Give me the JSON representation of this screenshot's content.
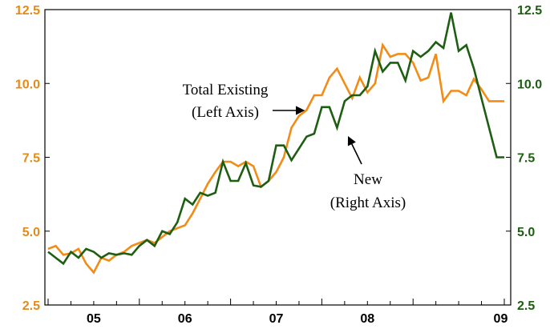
{
  "chart_data": {
    "type": "line",
    "title": "",
    "xlabel": "",
    "ylabel_left": "",
    "ylabel_right": "",
    "x_tick_labels": [
      "05",
      "06",
      "07",
      "08",
      "09"
    ],
    "left_axis": {
      "ylim": [
        2.5,
        12.5
      ],
      "ticks": [
        "2.5",
        "5.0",
        "7.5",
        "10.0",
        "12.5"
      ],
      "color": "#e68a17"
    },
    "right_axis": {
      "ylim": [
        2.5,
        12.5
      ],
      "ticks": [
        "2.5",
        "5.0",
        "7.5",
        "10.0",
        "12.5"
      ],
      "color": "#1e5e12"
    },
    "series": [
      {
        "name": "Total Existing",
        "axis": "left",
        "color": "#f28c16",
        "x": [
          2004.0,
          2004.0833,
          2004.1667,
          2004.25,
          2004.3333,
          2004.4167,
          2004.5,
          2004.5833,
          2004.6667,
          2004.75,
          2004.8333,
          2004.9167,
          2005.0,
          2005.0833,
          2005.1667,
          2005.25,
          2005.3333,
          2005.4167,
          2005.5,
          2005.5833,
          2005.6667,
          2005.75,
          2005.8333,
          2005.9167,
          2006.0,
          2006.0833,
          2006.1667,
          2006.25,
          2006.3333,
          2006.4167,
          2006.5,
          2006.5833,
          2006.6667,
          2006.75,
          2006.8333,
          2006.9167,
          2007.0,
          2007.0833,
          2007.1667,
          2007.25,
          2007.3333,
          2007.4167,
          2007.5,
          2007.5833,
          2007.6667,
          2007.75,
          2007.8333,
          2007.9167,
          2008.0,
          2008.0833,
          2008.1667,
          2008.25,
          2008.3333,
          2008.4167,
          2008.5,
          2008.5833,
          2008.6667,
          2008.75,
          2008.8333,
          2008.9167,
          2009.0
        ],
        "values": [
          4.4,
          4.5,
          4.2,
          4.25,
          4.4,
          3.9,
          3.6,
          4.1,
          4.0,
          4.2,
          4.3,
          4.5,
          4.6,
          4.7,
          4.6,
          4.8,
          5.0,
          5.1,
          5.2,
          5.6,
          6.1,
          6.6,
          7.0,
          7.35,
          7.35,
          7.2,
          7.35,
          7.2,
          6.5,
          6.7,
          7.0,
          7.5,
          8.5,
          8.9,
          9.1,
          9.6,
          9.6,
          10.2,
          10.5,
          10.0,
          9.5,
          10.2,
          9.7,
          10.0,
          11.3,
          10.9,
          11.0,
          11.0,
          10.7,
          10.1,
          10.2,
          11.0,
          9.4,
          9.75,
          9.75,
          9.6,
          10.15,
          9.8,
          9.4,
          9.4,
          9.4
        ]
      },
      {
        "name": "New",
        "axis": "right",
        "color": "#1e5e12",
        "x": [
          2004.0,
          2004.0833,
          2004.1667,
          2004.25,
          2004.3333,
          2004.4167,
          2004.5,
          2004.5833,
          2004.6667,
          2004.75,
          2004.8333,
          2004.9167,
          2005.0,
          2005.0833,
          2005.1667,
          2005.25,
          2005.3333,
          2005.4167,
          2005.5,
          2005.5833,
          2005.6667,
          2005.75,
          2005.8333,
          2005.9167,
          2006.0,
          2006.0833,
          2006.1667,
          2006.25,
          2006.3333,
          2006.4167,
          2006.5,
          2006.5833,
          2006.6667,
          2006.75,
          2006.8333,
          2006.9167,
          2007.0,
          2007.0833,
          2007.1667,
          2007.25,
          2007.3333,
          2007.4167,
          2007.5,
          2007.5833,
          2007.6667,
          2007.75,
          2007.8333,
          2007.9167,
          2008.0,
          2008.0833,
          2008.1667,
          2008.25,
          2008.3333,
          2008.4167,
          2008.5,
          2008.5833,
          2008.6667,
          2008.75,
          2008.8333,
          2008.9167,
          2009.0
        ],
        "values": [
          4.3,
          4.1,
          3.9,
          4.3,
          4.1,
          4.4,
          4.3,
          4.1,
          4.25,
          4.2,
          4.25,
          4.2,
          4.5,
          4.7,
          4.5,
          5.0,
          4.9,
          5.3,
          6.1,
          5.9,
          6.3,
          6.2,
          6.3,
          7.35,
          6.7,
          6.7,
          7.3,
          6.55,
          6.5,
          6.7,
          7.9,
          7.9,
          7.4,
          7.8,
          8.2,
          8.3,
          9.2,
          9.2,
          8.5,
          9.4,
          9.6,
          9.6,
          9.9,
          11.1,
          10.4,
          10.7,
          10.7,
          10.1,
          11.1,
          10.9,
          11.1,
          11.4,
          11.2,
          12.4,
          11.1,
          11.3,
          10.5,
          9.5,
          8.5,
          7.5,
          7.5
        ]
      }
    ],
    "annotations": [
      {
        "lines": [
          "Total Existing",
          "(Left Axis)"
        ],
        "series": "Total Existing"
      },
      {
        "lines": [
          "New",
          "(Right Axis)"
        ],
        "series": "New"
      }
    ],
    "grid": false,
    "legend": "none"
  }
}
